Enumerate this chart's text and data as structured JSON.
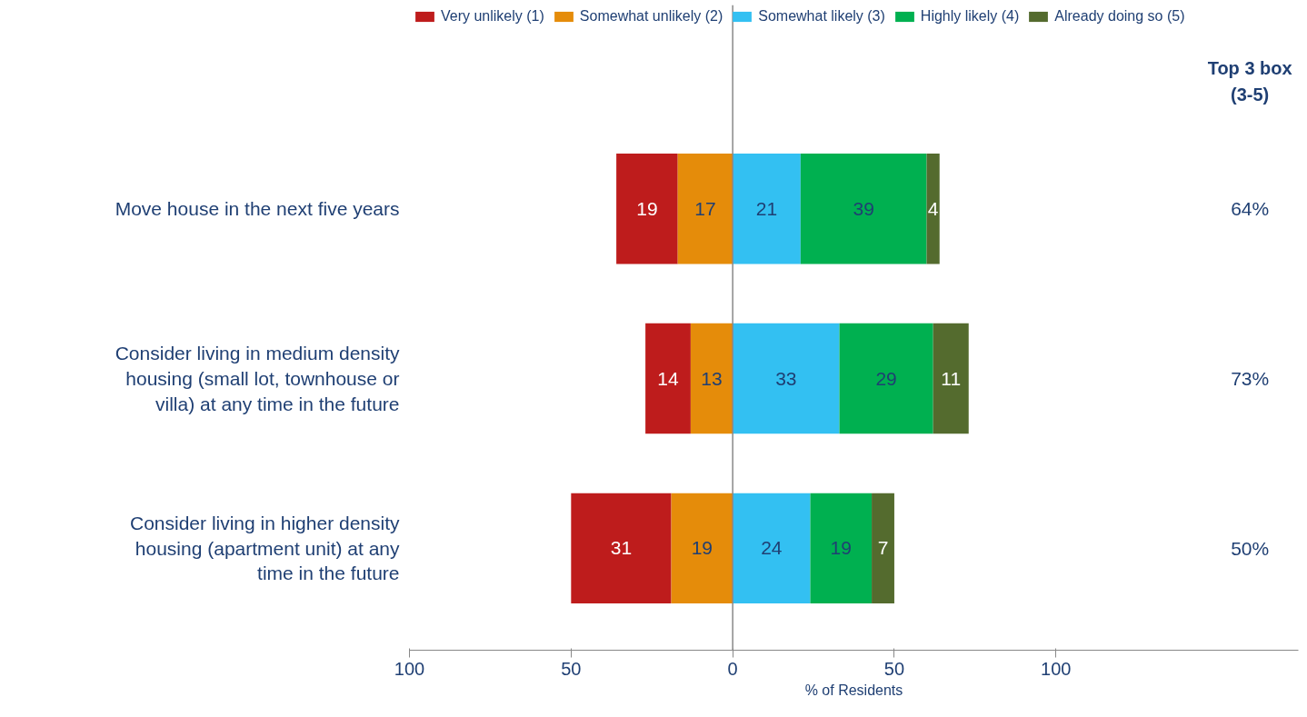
{
  "chart_data": {
    "type": "bar",
    "orientation": "horizontal",
    "categories": [
      "Move house in the next five years",
      "Consider living in medium density housing (small lot, townhouse or villa) at any time in the future",
      "Consider living in higher density housing (apartment unit) at any time in the future"
    ],
    "series": [
      {
        "name": "Very unlikely (1)",
        "color": "#be1c1c",
        "values": [
          19,
          14,
          31
        ],
        "base": [
          -36,
          -27,
          -50
        ]
      },
      {
        "name": "Somewhat unlikely (2)",
        "color": "#e58c0a",
        "values": [
          17,
          13,
          19
        ],
        "base": [
          -17,
          -13,
          -19
        ]
      },
      {
        "name": "Somewhat likely (3)",
        "color": "#33c0f2",
        "values": [
          21,
          33,
          24
        ],
        "base": [
          0,
          0,
          0
        ]
      },
      {
        "name": "Highly likely (4)",
        "color": "#00b050",
        "values": [
          39,
          29,
          19
        ],
        "base": [
          21,
          33,
          24
        ]
      },
      {
        "name": "Already doing so (5)",
        "color": "#546b2e",
        "values": [
          4,
          11,
          7
        ],
        "base": [
          60,
          62,
          43
        ]
      }
    ],
    "data_labels": true,
    "annotations": [
      "Top 3 box (3-5)",
      "64%",
      "73%",
      "50%"
    ],
    "ref_lines": [
      {
        "axis": "x",
        "value": 0,
        "color": "#888888"
      }
    ],
    "xlabel": "% of Residents",
    "xlim": [
      -100,
      175
    ],
    "xticks": [
      {
        "value": -100,
        "label": "100"
      },
      {
        "value": -50,
        "label": "50"
      },
      0,
      50,
      100
    ],
    "legend": "top"
  }
}
